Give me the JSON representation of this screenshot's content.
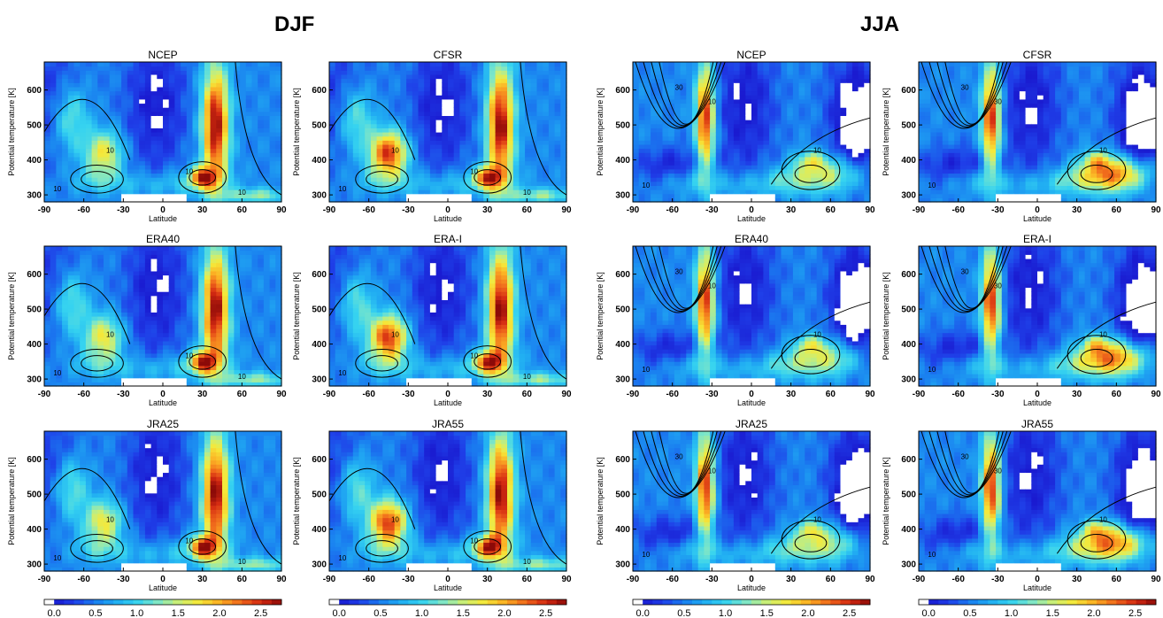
{
  "figure": {
    "season_titles": [
      "DJF",
      "JJA"
    ],
    "colorbar": {
      "ticks": [
        "0.0",
        "0.5",
        "1.0",
        "1.5",
        "2.0",
        "2.5"
      ],
      "range": [
        0.0,
        2.75
      ]
    }
  },
  "chart_data": [
    {
      "type": "heatmap",
      "season": "DJF",
      "title": "NCEP",
      "xlabel": "Latitude",
      "ylabel": "Potential temperature [K]",
      "xticks": [
        "-90",
        "-60",
        "-30",
        "0",
        "30",
        "60",
        "90"
      ],
      "yticks": [
        "300",
        "400",
        "500",
        "600"
      ],
      "xlim": [
        -90,
        90
      ],
      "ylim": [
        280,
        680
      ],
      "contour_labels": [
        "10",
        "10",
        "10",
        "10"
      ]
    },
    {
      "type": "heatmap",
      "season": "DJF",
      "title": "CFSR",
      "xlabel": "Latitude",
      "ylabel": "Potential temperature [K]",
      "xticks": [
        "-90",
        "-60",
        "-30",
        "0",
        "30",
        "60",
        "90"
      ],
      "yticks": [
        "300",
        "400",
        "500",
        "600"
      ],
      "xlim": [
        -90,
        90
      ],
      "ylim": [
        280,
        680
      ],
      "contour_labels": [
        "10",
        "10",
        "10",
        "10"
      ]
    },
    {
      "type": "heatmap",
      "season": "JJA",
      "title": "NCEP",
      "xlabel": "Latitude",
      "ylabel": "Potential temperature [K]",
      "xticks": [
        "-90",
        "-60",
        "-30",
        "0",
        "30",
        "60",
        "90"
      ],
      "yticks": [
        "300",
        "400",
        "500",
        "600"
      ],
      "xlim": [
        -90,
        90
      ],
      "ylim": [
        280,
        680
      ],
      "contour_labels": [
        "10",
        "30",
        "10",
        "10"
      ]
    },
    {
      "type": "heatmap",
      "season": "JJA",
      "title": "CFSR",
      "xlabel": "Latitude",
      "ylabel": "Potential temperature [K]",
      "xticks": [
        "-90",
        "-60",
        "-30",
        "0",
        "30",
        "60",
        "90"
      ],
      "yticks": [
        "300",
        "400",
        "500",
        "600"
      ],
      "xlim": [
        -90,
        90
      ],
      "ylim": [
        280,
        680
      ],
      "contour_labels": [
        "10",
        "30",
        "30",
        "10"
      ]
    },
    {
      "type": "heatmap",
      "season": "DJF",
      "title": "ERA40",
      "xlabel": "Latitude",
      "ylabel": "Potential temperature [K]",
      "xticks": [
        "-90",
        "-60",
        "-30",
        "0",
        "30",
        "60",
        "90"
      ],
      "yticks": [
        "300",
        "400",
        "500",
        "600"
      ],
      "xlim": [
        -90,
        90
      ],
      "ylim": [
        280,
        680
      ],
      "contour_labels": [
        "10",
        "10",
        "10",
        "10"
      ]
    },
    {
      "type": "heatmap",
      "season": "DJF",
      "title": "ERA-I",
      "xlabel": "Latitude",
      "ylabel": "Potential temperature [K]",
      "xticks": [
        "-90",
        "-60",
        "-30",
        "0",
        "30",
        "60",
        "90"
      ],
      "yticks": [
        "300",
        "400",
        "500",
        "600"
      ],
      "xlim": [
        -90,
        90
      ],
      "ylim": [
        280,
        680
      ],
      "contour_labels": [
        "10",
        "10",
        "10",
        "10"
      ]
    },
    {
      "type": "heatmap",
      "season": "JJA",
      "title": "ERA40",
      "xlabel": "Latitude",
      "ylabel": "Potential temperature [K]",
      "xticks": [
        "-90",
        "-60",
        "-30",
        "0",
        "30",
        "60",
        "90"
      ],
      "yticks": [
        "300",
        "400",
        "500",
        "600"
      ],
      "xlim": [
        -90,
        90
      ],
      "ylim": [
        280,
        680
      ],
      "contour_labels": [
        "10",
        "30",
        "10",
        "10"
      ]
    },
    {
      "type": "heatmap",
      "season": "JJA",
      "title": "ERA-I",
      "xlabel": "Latitude",
      "ylabel": "Potential temperature [K]",
      "xticks": [
        "-90",
        "-60",
        "-30",
        "0",
        "30",
        "60",
        "90"
      ],
      "yticks": [
        "300",
        "400",
        "500",
        "600"
      ],
      "xlim": [
        -90,
        90
      ],
      "ylim": [
        280,
        680
      ],
      "contour_labels": [
        "10",
        "30",
        "30",
        "10"
      ]
    },
    {
      "type": "heatmap",
      "season": "DJF",
      "title": "JRA25",
      "xlabel": "Latitude",
      "ylabel": "Potential temperature [K]",
      "xticks": [
        "-90",
        "-60",
        "-30",
        "0",
        "30",
        "60",
        "90"
      ],
      "yticks": [
        "300",
        "400",
        "500",
        "600"
      ],
      "xlim": [
        -90,
        90
      ],
      "ylim": [
        280,
        680
      ],
      "contour_labels": [
        "10",
        "10",
        "10",
        "10"
      ]
    },
    {
      "type": "heatmap",
      "season": "DJF",
      "title": "JRA55",
      "xlabel": "Latitude",
      "ylabel": "Potential temperature [K]",
      "xticks": [
        "-90",
        "-60",
        "-30",
        "0",
        "30",
        "60",
        "90"
      ],
      "yticks": [
        "300",
        "400",
        "500",
        "600"
      ],
      "xlim": [
        -90,
        90
      ],
      "ylim": [
        280,
        680
      ],
      "contour_labels": [
        "10",
        "10",
        "10",
        "10"
      ]
    },
    {
      "type": "heatmap",
      "season": "JJA",
      "title": "JRA25",
      "xlabel": "Latitude",
      "ylabel": "Potential temperature [K]",
      "xticks": [
        "-90",
        "-60",
        "-30",
        "0",
        "30",
        "60",
        "90"
      ],
      "yticks": [
        "300",
        "400",
        "500",
        "600"
      ],
      "xlim": [
        -90,
        90
      ],
      "ylim": [
        280,
        680
      ],
      "contour_labels": [
        "10",
        "30",
        "10",
        "10"
      ]
    },
    {
      "type": "heatmap",
      "season": "JJA",
      "title": "JRA55",
      "xlabel": "Latitude",
      "ylabel": "Potential temperature [K]",
      "xticks": [
        "-90",
        "-60",
        "-30",
        "0",
        "30",
        "60",
        "90"
      ],
      "yticks": [
        "300",
        "400",
        "500",
        "600"
      ],
      "xlim": [
        -90,
        90
      ],
      "ylim": [
        280,
        680
      ],
      "contour_labels": [
        "10",
        "30",
        "30",
        "10"
      ]
    }
  ]
}
